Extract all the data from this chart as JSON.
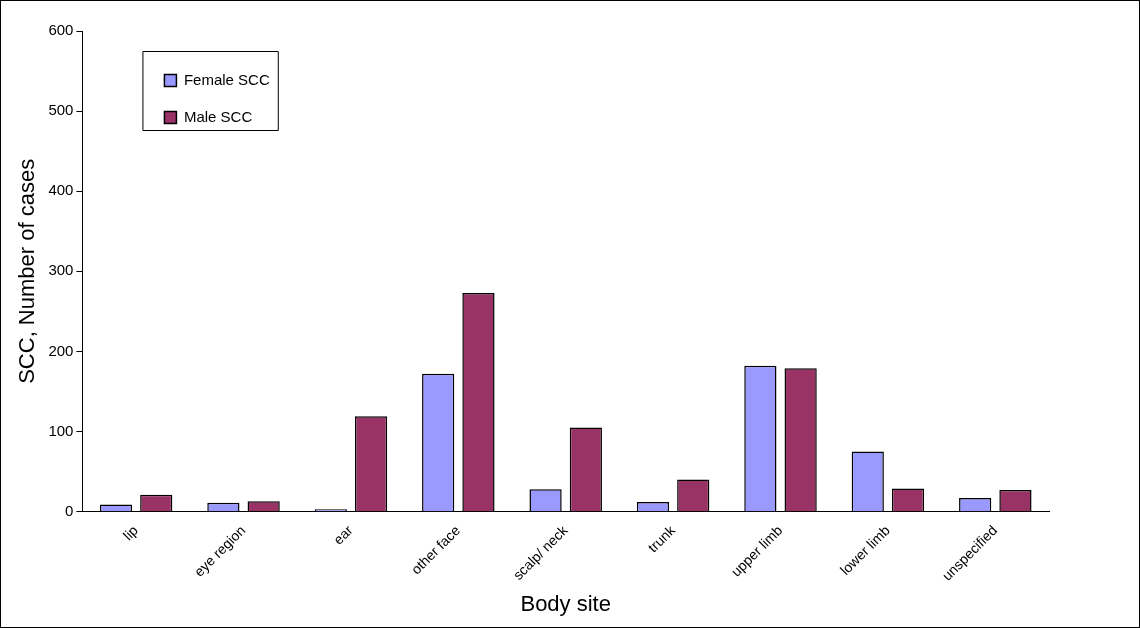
{
  "chart_data": {
    "type": "bar",
    "xlabel": "Body site",
    "ylabel": "SCC, Number of cases",
    "categories": [
      "lip",
      "eye region",
      "ear",
      "other face",
      "scalp/ neck",
      "trunk",
      "upper limb",
      "lower limb",
      "unspecified"
    ],
    "series": [
      {
        "name": "Female SCC",
        "color": "#9999ff",
        "values": [
          9,
          11,
          3,
          172,
          28,
          12,
          182,
          75,
          17
        ]
      },
      {
        "name": "Male SCC",
        "color": "#993366",
        "values": [
          21,
          13,
          119,
          273,
          105,
          40,
          179,
          29,
          27
        ]
      }
    ],
    "ylim": [
      0,
      600
    ],
    "yticks": [
      0,
      100,
      200,
      300,
      400,
      500,
      600
    ],
    "grid": false,
    "legend": "top left"
  }
}
